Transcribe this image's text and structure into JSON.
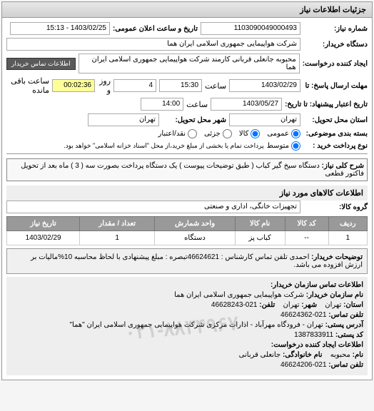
{
  "panel": {
    "title": "جزئیات اطلاعات نیاز"
  },
  "fields": {
    "request_no_label": "شماره نیاز:",
    "request_no": "1103090049000493",
    "announce_label": "تاریخ و ساعت اعلان عمومی:",
    "announce_value": "1403/02/25 - 15:13",
    "buyer_device_label": "دستگاه خریدار:",
    "buyer_device": "شرکت هواپیمایی جمهوری اسلامی ایران هما",
    "creator_label": "ایجاد کننده درخواست:",
    "creator": "محبوبه جانعلی قربانی کارمند شرکت هواپیمایی جمهوری اسلامی ایران هما",
    "contact_btn": "اطلاعات تماس خریدار",
    "deadline_label": "مهلت ارسال پاسخ: تا",
    "deadline_date": "1403/02/29",
    "time_label": "ساعت",
    "deadline_time": "15:30",
    "days_label": "روز و",
    "remaining_days": "4",
    "remaining_time": "00:02:36",
    "remaining_label": "ساعت باقی مانده",
    "validity_label": "تاریخ اعتبار پیشنهاد: تا تاریخ:",
    "validity_date": "1403/05/27",
    "validity_time": "14:00",
    "province_label": "استان محل تحویل:",
    "province": "تهران",
    "city_label": "شهر محل تحویل:",
    "city": "تهران",
    "budget_label": "بسته بندی موضوعی:",
    "radio_general": "عمومی",
    "radio_goods": "کالا",
    "radio_partial": "جزئی",
    "radio_credit": "نقد/اعتبار",
    "payment_type_label": "نوع پرداخت خرید :",
    "payment_note": "پرداخت تمام یا بخشی از مبلغ خرید،از محل \"اسناد خزانه اسلامی\" خواهد بود.",
    "need_title_label": "شرح کلی نیاز:",
    "need_title": "دستگاه سیخ گیر کباب ( طبق توضیحات پیوست ) یک دستگاه پرداخت بصورت سه ( 3 ) ماه بعد از تحویل فاکتور قطعی",
    "goods_section": "اطلاعات کالاهای مورد نیاز",
    "group_label": "گروه کالا:",
    "group_value": "تجهیزات خانگی، اداری و صنعتی"
  },
  "table": {
    "headers": {
      "row": "ردیف",
      "code": "کد کالا",
      "name": "نام کالا",
      "unit": "واحد شمارش",
      "qty": "تعداد / مقدار",
      "date": "تاریخ نیاز"
    },
    "rows": [
      {
        "row": "1",
        "code": "--",
        "name": "کباب پز",
        "unit": "دستگاه",
        "qty": "1",
        "date": "1403/02/29"
      }
    ]
  },
  "buyer_desc": {
    "label": "توضیحات خریدار:",
    "text": "احمدی تلفن تماس کارشناس : 46624621تبصره : مبلغ پیشنهادی با لحاظ محاسبه 10%مالیات بر ارزش افزوده می باشد."
  },
  "contact": {
    "section_title": "اطلاعات تماس سازمان خریدار:",
    "org_label": "نام سازمان خریدار:",
    "org": "شرکت هواپیمایی جمهوری اسلامی ایران هما",
    "state_label": "استان:",
    "state": "تهران",
    "city_label": "شهر:",
    "city": "تهران",
    "phone_label": "تلفن:",
    "phone": "021-46628243",
    "fax_label": "تلفن تماس:",
    "fax": "021-46624362",
    "address_label": "آدرس پستی:",
    "address": "تهران - فرودگاه مهرآباد - ادارات مرکزی شرکت هواپیمایی جمهوری اسلامی ایران \"هما\"",
    "postal_label": "کد پستی:",
    "postal": "1387833911",
    "creator_section": "اطلاعات ایجاد کننده درخواست:",
    "name_label": "نام:",
    "name": "محبوبه",
    "family_label": "نام خانوادگی:",
    "family": "جانعلی قربانی",
    "phone2_label": "تلفن تماس:",
    "phone2": "021-46624206"
  },
  "watermark": "۰۲۱-۸۸۳۴۹۶۷۰",
  "colors": {
    "header_bg": "#d8d8d8",
    "table_header_bg": "#999999",
    "field_border": "#aaaaaa",
    "highlight": "#ffff99"
  }
}
